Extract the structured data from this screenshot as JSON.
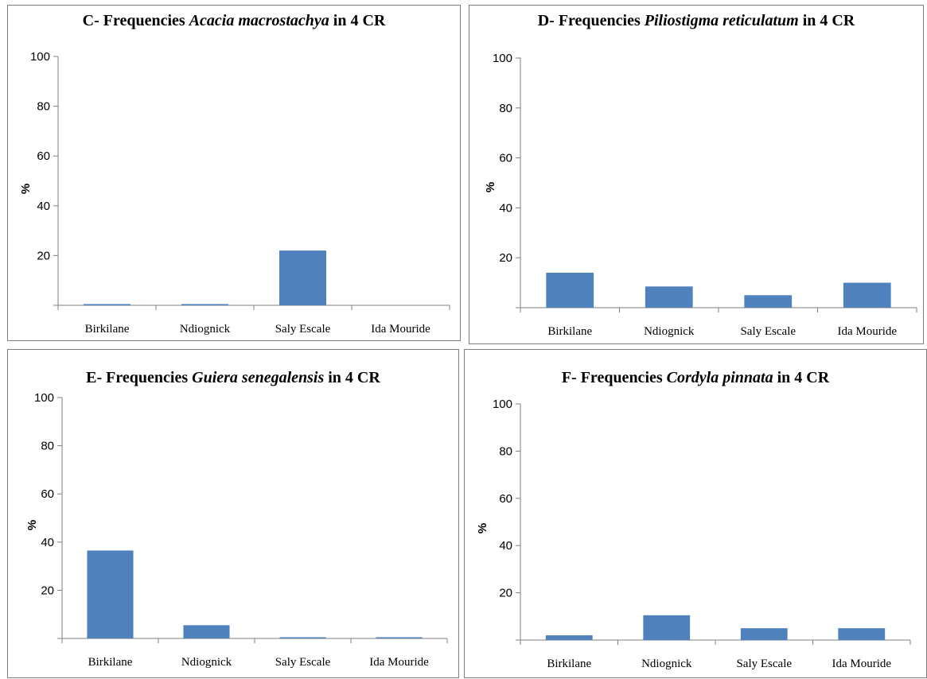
{
  "colors": {
    "bar": "#4f81bd",
    "axis": "#7f7f7f",
    "border": "#7f7f7f"
  },
  "chart_data": [
    {
      "type": "bar",
      "title_prefix": "C- Frequencies ",
      "title_species": "Acacia macrostachya",
      "title_suffix": " in 4 CR",
      "ylabel": "%",
      "xlabel": "",
      "ylim": [
        0,
        100
      ],
      "yticks": [
        "20",
        "40",
        "60",
        "80",
        "100"
      ],
      "categories": [
        "Birkilane",
        "Ndiognick",
        "Saly Escale",
        "Ida Mouride"
      ],
      "values": [
        0.5,
        0.5,
        22,
        0
      ]
    },
    {
      "type": "bar",
      "title_prefix": "D- Frequencies ",
      "title_species": "Piliostigma reticulatum",
      "title_suffix": " in 4 CR",
      "ylabel": "%",
      "xlabel": "",
      "ylim": [
        0,
        100
      ],
      "yticks": [
        "20",
        "40",
        "60",
        "80",
        "100"
      ],
      "categories": [
        "Birkilane",
        "Ndiognick",
        "Saly Escale",
        "Ida Mouride"
      ],
      "values": [
        14,
        8.5,
        5,
        10
      ]
    },
    {
      "type": "bar",
      "title_prefix": "E- Frequencies ",
      "title_species": "Guiera senegalensis",
      "title_suffix": " in 4 CR",
      "ylabel": "%",
      "xlabel": "",
      "ylim": [
        0,
        100
      ],
      "yticks": [
        "20",
        "40",
        "60",
        "80",
        "100"
      ],
      "categories": [
        "Birkilane",
        "Ndiognick",
        "Saly Escale",
        "Ida Mouride"
      ],
      "values": [
        36.5,
        5.5,
        0.5,
        0.5
      ]
    },
    {
      "type": "bar",
      "title_prefix": "F- Frequencies ",
      "title_species": "Cordyla pinnata",
      "title_suffix": " in 4 CR",
      "ylabel": "%",
      "xlabel": "",
      "ylim": [
        0,
        100
      ],
      "yticks": [
        "20",
        "40",
        "60",
        "80",
        "100"
      ],
      "categories": [
        "Birkilane",
        "Ndiognick",
        "Saly Escale",
        "Ida Mouride"
      ],
      "values": [
        2,
        10.5,
        5,
        5
      ]
    }
  ]
}
